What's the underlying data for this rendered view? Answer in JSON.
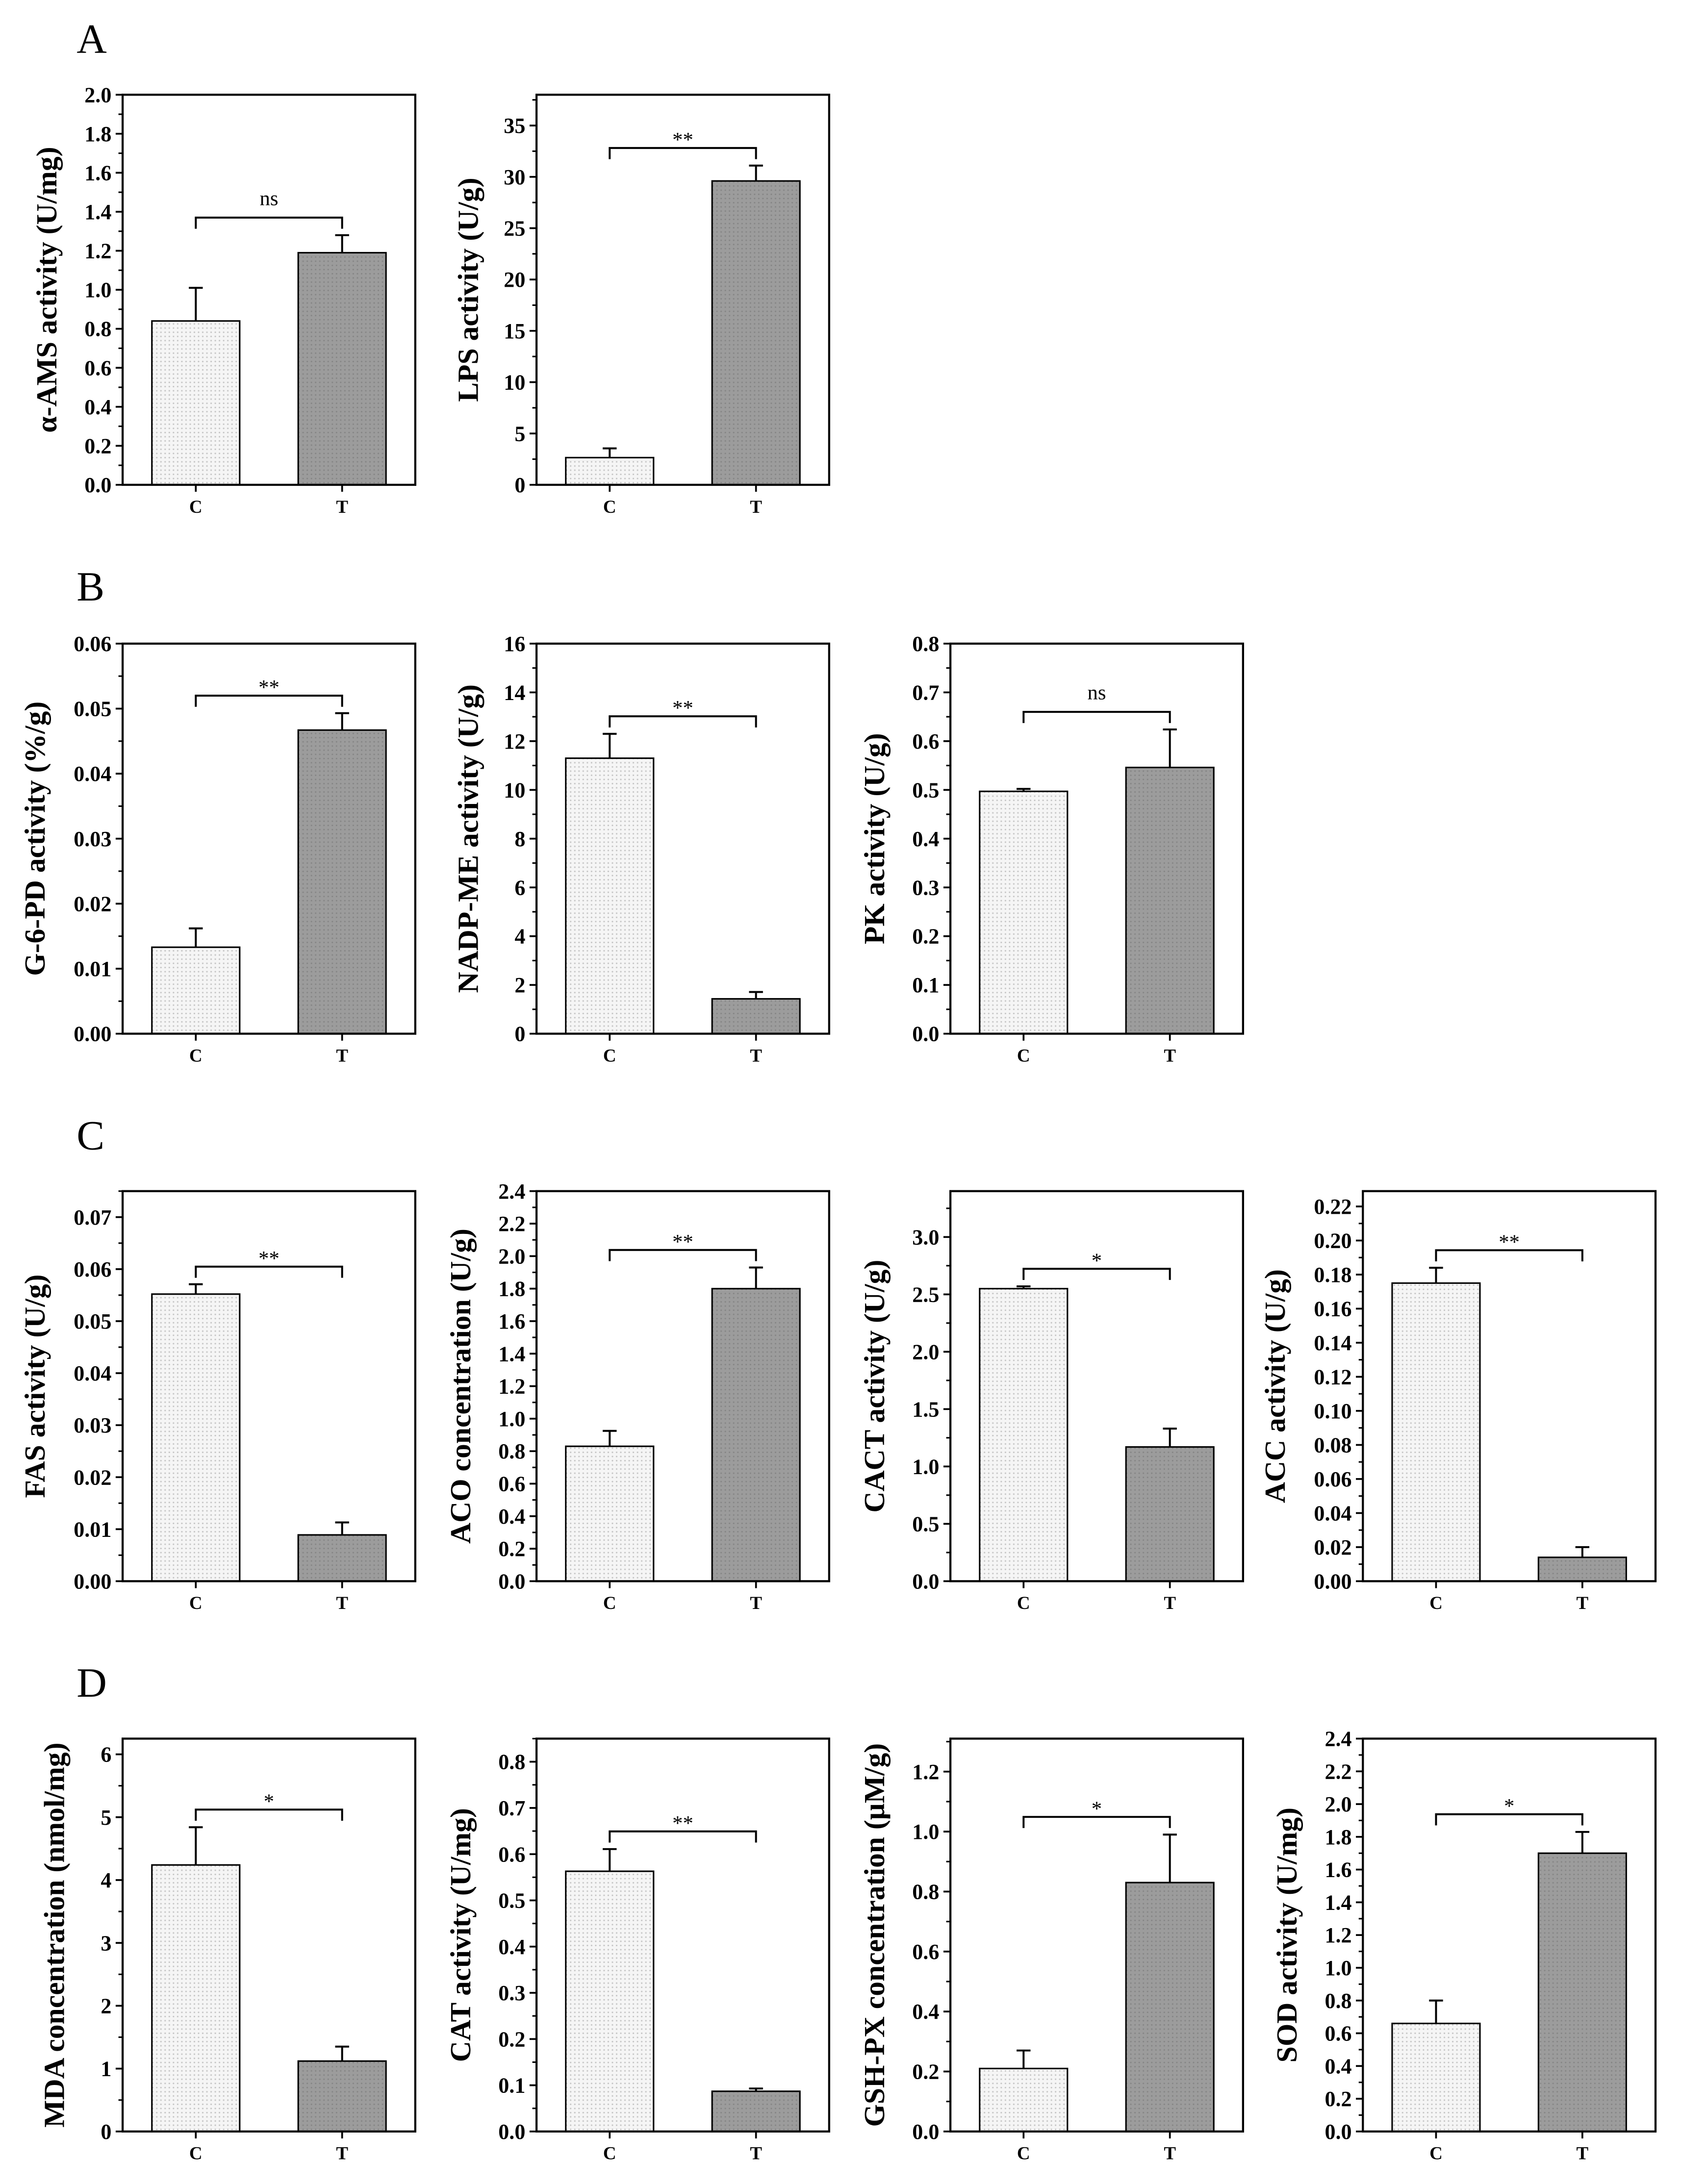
{
  "panel_labels": [
    "A",
    "B",
    "C",
    "D"
  ],
  "colors": {
    "control_bar": "#f5f5f5",
    "control_dots": "#c4c4c4",
    "treatment_bar": "#9c9c9c",
    "treatment_dots": "#858585",
    "axis": "#000000"
  },
  "chart_data": [
    {
      "type": "bar",
      "ylabel": "α-AMS activity (U/mg)",
      "categories": [
        "C",
        "T"
      ],
      "values": [
        0.84,
        1.19
      ],
      "errors": [
        0.17,
        0.09
      ],
      "significance": "ns",
      "ylim": [
        0,
        2.0
      ],
      "yticks": [
        "0.0",
        "0.2",
        "0.4",
        "0.6",
        "0.8",
        "1.0",
        "1.2",
        "1.4",
        "1.6",
        "1.8",
        "2.0"
      ]
    },
    {
      "type": "bar",
      "ylabel": "LPS activity (U/g)",
      "categories": [
        "C",
        "T"
      ],
      "values": [
        2.65,
        29.6
      ],
      "errors": [
        0.9,
        1.5
      ],
      "significance": "**",
      "ylim": [
        0,
        38
      ],
      "yticks": [
        "0",
        "5",
        "10",
        "15",
        "20",
        "25",
        "30",
        "35"
      ]
    },
    {
      "type": "bar",
      "ylabel": "G-6-PD activity (%/g)",
      "categories": [
        "C",
        "T"
      ],
      "values": [
        0.0133,
        0.0467
      ],
      "errors": [
        0.0029,
        0.0026
      ],
      "significance": "**",
      "ylim": [
        0,
        0.06
      ],
      "yticks": [
        "0.00",
        "0.01",
        "0.02",
        "0.03",
        "0.04",
        "0.05",
        "0.06"
      ]
    },
    {
      "type": "bar",
      "ylabel": "NADP-ME activity (U/g)",
      "categories": [
        "C",
        "T"
      ],
      "values": [
        11.3,
        1.43
      ],
      "errors": [
        1.0,
        0.28
      ],
      "significance": "**",
      "ylim": [
        0,
        16
      ],
      "yticks": [
        "0",
        "2",
        "4",
        "6",
        "8",
        "10",
        "12",
        "14",
        "16"
      ]
    },
    {
      "type": "bar",
      "ylabel": "PK activity (U/g)",
      "categories": [
        "C",
        "T"
      ],
      "values": [
        0.497,
        0.546
      ],
      "errors": [
        0.005,
        0.078
      ],
      "significance": "ns",
      "ylim": [
        0,
        0.8
      ],
      "yticks": [
        "0.0",
        "0.1",
        "0.2",
        "0.3",
        "0.4",
        "0.5",
        "0.6",
        "0.7",
        "0.8"
      ]
    },
    {
      "type": "bar",
      "ylabel": "FAS activity (U/g)",
      "categories": [
        "C",
        "T"
      ],
      "values": [
        0.0552,
        0.0089
      ],
      "errors": [
        0.0019,
        0.0024
      ],
      "significance": "**",
      "ylim": [
        0,
        0.075
      ],
      "yticks": [
        "0.00",
        "0.01",
        "0.02",
        "0.03",
        "0.04",
        "0.05",
        "0.06",
        "0.07"
      ]
    },
    {
      "type": "bar",
      "ylabel": "ACO concentration (U/g)",
      "categories": [
        "C",
        "T"
      ],
      "values": [
        0.83,
        1.8
      ],
      "errors": [
        0.095,
        0.13
      ],
      "significance": "**",
      "ylim": [
        0,
        2.4
      ],
      "yticks": [
        "0.0",
        "0.2",
        "0.4",
        "0.6",
        "0.8",
        "1.0",
        "1.2",
        "1.4",
        "1.6",
        "1.8",
        "2.0",
        "2.2",
        "2.4"
      ]
    },
    {
      "type": "bar",
      "ylabel": "CACT activity (U/g)",
      "categories": [
        "C",
        "T"
      ],
      "values": [
        2.55,
        1.17
      ],
      "errors": [
        0.02,
        0.16
      ],
      "significance": "*",
      "ylim": [
        0,
        3.4
      ],
      "yticks": [
        "0.0",
        "0.5",
        "1.0",
        "1.5",
        "2.0",
        "2.5",
        "3.0"
      ]
    },
    {
      "type": "bar",
      "ylabel": "ACC activity (U/g)",
      "categories": [
        "C",
        "T"
      ],
      "values": [
        0.175,
        0.014
      ],
      "errors": [
        0.009,
        0.006
      ],
      "significance": "**",
      "ylim": [
        0,
        0.229
      ],
      "yticks": [
        "0.00",
        "0.02",
        "0.04",
        "0.06",
        "0.08",
        "0.10",
        "0.12",
        "0.14",
        "0.16",
        "0.18",
        "0.20",
        "0.22"
      ]
    },
    {
      "type": "bar",
      "ylabel": "MDA concentration (nmol/mg)",
      "categories": [
        "C",
        "T"
      ],
      "values": [
        4.24,
        1.12
      ],
      "errors": [
        0.6,
        0.23
      ],
      "significance": "*",
      "ylim": [
        0,
        6.25
      ],
      "yticks": [
        "0",
        "1",
        "2",
        "3",
        "4",
        "5",
        "6"
      ]
    },
    {
      "type": "bar",
      "ylabel": "CAT activity (U/mg)",
      "categories": [
        "C",
        "T"
      ],
      "values": [
        0.563,
        0.087
      ],
      "errors": [
        0.048,
        0.006
      ],
      "significance": "**",
      "ylim": [
        0,
        0.85
      ],
      "yticks": [
        "0.0",
        "0.1",
        "0.2",
        "0.3",
        "0.4",
        "0.5",
        "0.6",
        "0.7",
        "0.8"
      ]
    },
    {
      "type": "bar",
      "ylabel": "GSH-PX concentration (μM/g)",
      "categories": [
        "C",
        "T"
      ],
      "values": [
        0.21,
        0.83
      ],
      "errors": [
        0.06,
        0.16
      ],
      "significance": "*",
      "ylim": [
        0,
        1.31
      ],
      "yticks": [
        "0.0",
        "0.2",
        "0.4",
        "0.6",
        "0.8",
        "1.0",
        "1.2"
      ]
    },
    {
      "type": "bar",
      "ylabel": "SOD activity (U/mg)",
      "categories": [
        "C",
        "T"
      ],
      "values": [
        0.66,
        1.7
      ],
      "errors": [
        0.14,
        0.13
      ],
      "significance": "*",
      "ylim": [
        0,
        2.4
      ],
      "yticks": [
        "0.0",
        "0.2",
        "0.4",
        "0.6",
        "0.8",
        "1.0",
        "1.2",
        "1.4",
        "1.6",
        "1.8",
        "2.0",
        "2.2",
        "2.4"
      ]
    }
  ]
}
